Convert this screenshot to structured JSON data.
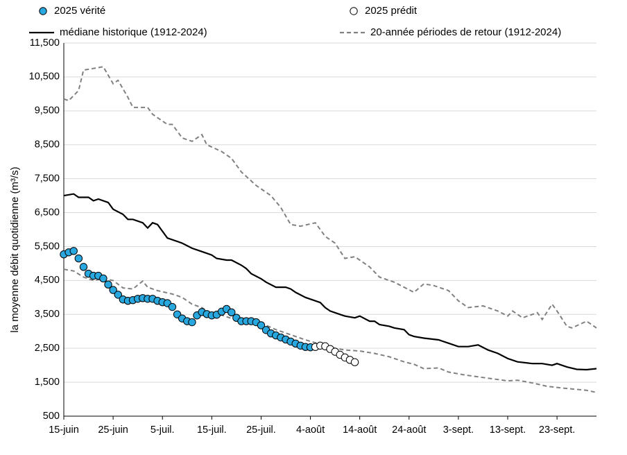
{
  "chart_data": {
    "type": "line",
    "y_label": "la moyenne débit quotidienne (m³/s)",
    "xlim": [
      0,
      108
    ],
    "xticks": [
      {
        "value": 0,
        "label": "15-juin"
      },
      {
        "value": 10,
        "label": "25-juin"
      },
      {
        "value": 20,
        "label": "5-juil."
      },
      {
        "value": 30,
        "label": "15-juil."
      },
      {
        "value": 40,
        "label": "25-juil."
      },
      {
        "value": 50,
        "label": "4-août"
      },
      {
        "value": 60,
        "label": "14-août"
      },
      {
        "value": 70,
        "label": "24-août"
      },
      {
        "value": 80,
        "label": "3-sept."
      },
      {
        "value": 90,
        "label": "13-sept."
      },
      {
        "value": 100,
        "label": "23-sept."
      }
    ],
    "ylim": [
      500,
      11500
    ],
    "yticks": [
      500,
      {
        "value": 1500,
        "label": "1,500"
      },
      {
        "value": 2500,
        "label": "2,500"
      },
      {
        "value": 3500,
        "label": "3,500"
      },
      {
        "value": 4500,
        "label": "4,500"
      },
      {
        "value": 5500,
        "label": "5,500"
      },
      {
        "value": 6500,
        "label": "6,500"
      },
      {
        "value": 7500,
        "label": "7,500"
      },
      {
        "value": 8500,
        "label": "8,500"
      },
      {
        "value": 9500,
        "label": "9,500"
      },
      {
        "value": 10500,
        "label": "10,500"
      },
      {
        "value": 11500,
        "label": "11,500"
      }
    ],
    "grid": true,
    "legend": "top",
    "series": [
      {
        "name": "2025 vérité",
        "style": "marker",
        "color": "#29a8e0",
        "x": [
          0,
          1,
          2,
          3,
          4,
          5,
          6,
          7,
          8,
          9,
          10,
          11,
          12,
          13,
          14,
          15,
          16,
          17,
          18,
          19,
          20,
          21,
          22,
          23,
          24,
          25,
          26,
          27,
          28,
          29,
          30,
          31,
          32,
          33,
          34,
          35,
          36,
          37,
          38,
          39,
          40,
          41,
          42,
          43,
          44,
          45,
          46,
          47,
          48,
          49,
          50
        ],
        "values": [
          5270,
          5330,
          5370,
          5150,
          4900,
          4700,
          4640,
          4640,
          4560,
          4380,
          4220,
          4080,
          3940,
          3900,
          3920,
          3960,
          3980,
          3960,
          3960,
          3900,
          3860,
          3830,
          3720,
          3500,
          3380,
          3300,
          3270,
          3470,
          3570,
          3510,
          3470,
          3490,
          3580,
          3660,
          3560,
          3400,
          3300,
          3300,
          3300,
          3270,
          3180,
          3040,
          2940,
          2880,
          2820,
          2760,
          2700,
          2640,
          2580,
          2540,
          2530
        ]
      },
      {
        "name": "2025 prédit",
        "style": "marker",
        "color": "#ffffff",
        "x": [
          51,
          52,
          53,
          54,
          55,
          56,
          57,
          58,
          59
        ],
        "values": [
          2540,
          2580,
          2560,
          2480,
          2400,
          2310,
          2230,
          2160,
          2090
        ]
      },
      {
        "name": "médiane historique (1912-2024)",
        "style": "solid",
        "color": "#000000",
        "x": [
          0,
          2,
          3,
          5,
          6,
          7,
          9,
          10,
          12,
          13,
          14,
          16,
          17,
          18,
          19,
          20,
          21,
          23,
          24,
          26,
          27,
          29,
          30,
          31,
          33,
          34,
          36,
          37,
          38,
          40,
          41,
          43,
          45,
          46,
          47,
          49,
          50,
          52,
          53,
          54,
          56,
          57,
          59,
          60,
          62,
          63,
          64,
          66,
          67,
          69,
          70,
          71,
          73,
          76,
          78,
          80,
          82,
          84,
          86,
          88,
          90,
          92,
          95,
          97,
          99,
          100,
          102,
          104,
          106,
          108
        ],
        "values": [
          7000,
          7050,
          6950,
          6950,
          6850,
          6900,
          6800,
          6600,
          6450,
          6300,
          6300,
          6200,
          6050,
          6200,
          6150,
          5950,
          5750,
          5650,
          5600,
          5450,
          5400,
          5300,
          5250,
          5150,
          5100,
          5100,
          4950,
          4850,
          4700,
          4550,
          4450,
          4300,
          4300,
          4250,
          4150,
          4000,
          3950,
          3850,
          3700,
          3600,
          3500,
          3450,
          3400,
          3450,
          3300,
          3300,
          3200,
          3150,
          3100,
          3050,
          2900,
          2850,
          2800,
          2750,
          2650,
          2550,
          2550,
          2600,
          2450,
          2350,
          2200,
          2100,
          2050,
          2050,
          2000,
          2050,
          1950,
          1880,
          1870,
          1900
        ]
      },
      {
        "name": "20-année périodes de retour (1912-2024)",
        "style": "dashed",
        "color": "#808080",
        "x": [
          0,
          1,
          3,
          4,
          6,
          8,
          10,
          11,
          13,
          14,
          17,
          18,
          21,
          22,
          24,
          26,
          28,
          29,
          32,
          34,
          36,
          39,
          42,
          44,
          46,
          48,
          51,
          53,
          55,
          57,
          59,
          62,
          64,
          67,
          71,
          73,
          75,
          78,
          80,
          82,
          85,
          88,
          90,
          91,
          93,
          96,
          97,
          99,
          100,
          102,
          103,
          106,
          108
        ],
        "values": [
          9850,
          9800,
          10100,
          10700,
          10750,
          10800,
          10300,
          10400,
          9900,
          9600,
          9600,
          9400,
          9100,
          9100,
          8700,
          8600,
          8800,
          8500,
          8300,
          8100,
          7700,
          7300,
          7000,
          6650,
          6150,
          6100,
          6200,
          5800,
          5600,
          5150,
          5200,
          4900,
          4600,
          4450,
          4150,
          4400,
          4350,
          4200,
          3900,
          3700,
          3750,
          3600,
          3450,
          3600,
          3400,
          3550,
          3350,
          3800,
          3600,
          3150,
          3100,
          3300,
          3100
        ]
      },
      {
        "name": "20-année périodes de retour (1912-2024)",
        "style": "dashed",
        "color": "#808080",
        "legend": false,
        "x": [
          0,
          2,
          4,
          6,
          8,
          10,
          12,
          14,
          16,
          17,
          19,
          22,
          24,
          26,
          28,
          30,
          32,
          34,
          36,
          38,
          41,
          43,
          46,
          49,
          52,
          55,
          57,
          60,
          63,
          66,
          69,
          71,
          73,
          76,
          78,
          81,
          84,
          87,
          90,
          92,
          95,
          98,
          101,
          104,
          106,
          108
        ],
        "values": [
          4830,
          4780,
          4600,
          4500,
          4550,
          4500,
          4280,
          4250,
          4480,
          4300,
          4200,
          4100,
          4000,
          3800,
          3700,
          3500,
          3480,
          3380,
          3380,
          3300,
          3180,
          3050,
          2900,
          2750,
          2620,
          2500,
          2450,
          2420,
          2350,
          2250,
          2100,
          2030,
          1900,
          1920,
          1800,
          1720,
          1660,
          1600,
          1540,
          1560,
          1480,
          1380,
          1330,
          1290,
          1260,
          1200
        ]
      }
    ]
  }
}
